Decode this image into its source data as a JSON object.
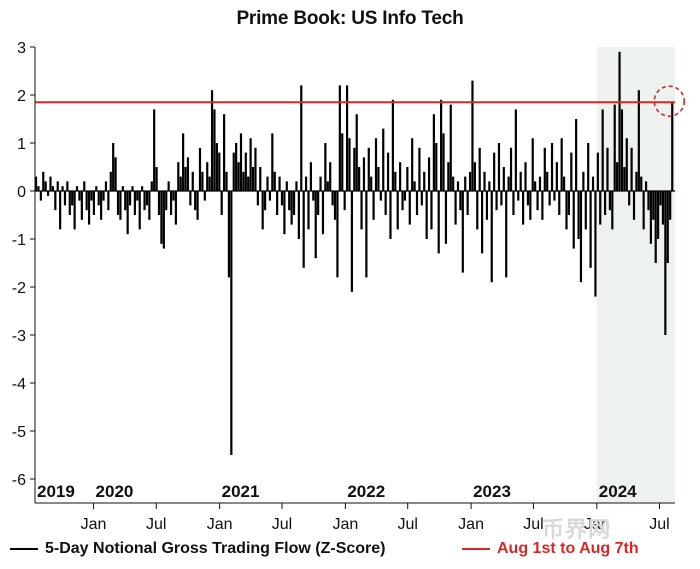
{
  "chart_data": {
    "type": "bar",
    "title": "Prime Book: US Info Tech",
    "xlabel": "",
    "ylabel": "",
    "ylim": [
      -6.5,
      3
    ],
    "yticks": [
      3,
      2,
      1,
      0,
      -1,
      -2,
      -3,
      -4,
      -5,
      -6
    ],
    "x_range": [
      "2019-07-15",
      "2024-08-15"
    ],
    "month_ticks": [
      {
        "label": "Jan",
        "date": "2020-01-01"
      },
      {
        "label": "Jul",
        "date": "2020-07-01"
      },
      {
        "label": "Jan",
        "date": "2021-01-01"
      },
      {
        "label": "Jul",
        "date": "2021-07-01"
      },
      {
        "label": "Jan",
        "date": "2022-01-01"
      },
      {
        "label": "Jul",
        "date": "2022-07-01"
      },
      {
        "label": "Jan",
        "date": "2023-01-01"
      },
      {
        "label": "Jul",
        "date": "2023-07-01"
      },
      {
        "label": "Jan",
        "date": "2024-01-01"
      },
      {
        "label": "Jul",
        "date": "2024-07-01"
      }
    ],
    "year_labels": [
      {
        "label": "2019",
        "date": "2019-07-15"
      },
      {
        "label": "2020",
        "date": "2020-01-01"
      },
      {
        "label": "2021",
        "date": "2021-01-01"
      },
      {
        "label": "2022",
        "date": "2022-01-01"
      },
      {
        "label": "2023",
        "date": "2023-01-01"
      },
      {
        "label": "2024",
        "date": "2024-01-01"
      }
    ],
    "highlight_range": [
      "2024-01-01",
      "2024-08-15"
    ],
    "reference_line": {
      "name": "Aug 1st to Aug 7th",
      "value": 1.85,
      "color": "#d62828"
    },
    "marker_circle": {
      "date": "2024-08-07",
      "value": 1.85
    },
    "series": [
      {
        "name": "5-Day Notional Gross Trading Flow (Z-Score)",
        "color": "#000000",
        "points": [
          [
            "2019-07-18",
            0.3
          ],
          [
            "2019-07-25",
            0.1
          ],
          [
            "2019-08-01",
            -0.2
          ],
          [
            "2019-08-08",
            0.4
          ],
          [
            "2019-08-15",
            0.2
          ],
          [
            "2019-08-22",
            -0.1
          ],
          [
            "2019-08-29",
            0.3
          ],
          [
            "2019-09-05",
            0.1
          ],
          [
            "2019-09-12",
            -0.4
          ],
          [
            "2019-09-19",
            0.2
          ],
          [
            "2019-09-26",
            -0.8
          ],
          [
            "2019-10-03",
            0.1
          ],
          [
            "2019-10-10",
            -0.3
          ],
          [
            "2019-10-17",
            0.2
          ],
          [
            "2019-10-24",
            -0.5
          ],
          [
            "2019-10-31",
            -0.3
          ],
          [
            "2019-11-07",
            -0.8
          ],
          [
            "2019-11-14",
            0.1
          ],
          [
            "2019-11-21",
            -0.2
          ],
          [
            "2019-11-28",
            -0.6
          ],
          [
            "2019-12-05",
            0.2
          ],
          [
            "2019-12-12",
            -0.4
          ],
          [
            "2019-12-19",
            -0.7
          ],
          [
            "2019-12-26",
            -0.2
          ],
          [
            "2020-01-02",
            -0.5
          ],
          [
            "2020-01-09",
            0.1
          ],
          [
            "2020-01-16",
            -0.3
          ],
          [
            "2020-01-23",
            -0.6
          ],
          [
            "2020-01-30",
            -0.2
          ],
          [
            "2020-02-06",
            0.2
          ],
          [
            "2020-02-13",
            -0.4
          ],
          [
            "2020-02-20",
            0.4
          ],
          [
            "2020-02-27",
            1.0
          ],
          [
            "2020-03-05",
            0.7
          ],
          [
            "2020-03-12",
            -0.5
          ],
          [
            "2020-03-19",
            -0.6
          ],
          [
            "2020-03-26",
            0.1
          ],
          [
            "2020-04-02",
            -0.4
          ],
          [
            "2020-04-09",
            -0.9
          ],
          [
            "2020-04-16",
            -0.3
          ],
          [
            "2020-04-23",
            0.1
          ],
          [
            "2020-04-30",
            -0.5
          ],
          [
            "2020-05-07",
            -0.2
          ],
          [
            "2020-05-14",
            -0.8
          ],
          [
            "2020-05-21",
            0.1
          ],
          [
            "2020-05-28",
            -0.4
          ],
          [
            "2020-06-04",
            -0.3
          ],
          [
            "2020-06-11",
            -0.6
          ],
          [
            "2020-06-18",
            0.2
          ],
          [
            "2020-06-25",
            1.7
          ],
          [
            "2020-07-02",
            0.5
          ],
          [
            "2020-07-09",
            -0.5
          ],
          [
            "2020-07-16",
            -1.1
          ],
          [
            "2020-07-23",
            -1.2
          ],
          [
            "2020-07-30",
            -0.4
          ],
          [
            "2020-08-06",
            0.2
          ],
          [
            "2020-08-13",
            -0.5
          ],
          [
            "2020-08-20",
            -0.2
          ],
          [
            "2020-08-27",
            -0.7
          ],
          [
            "2020-09-03",
            0.6
          ],
          [
            "2020-09-10",
            0.3
          ],
          [
            "2020-09-17",
            1.2
          ],
          [
            "2020-09-24",
            0.5
          ],
          [
            "2020-10-01",
            0.7
          ],
          [
            "2020-10-08",
            -0.3
          ],
          [
            "2020-10-15",
            0.4
          ],
          [
            "2020-10-22",
            -0.4
          ],
          [
            "2020-10-29",
            -0.6
          ],
          [
            "2020-11-05",
            0.9
          ],
          [
            "2020-11-12",
            0.4
          ],
          [
            "2020-11-19",
            -0.2
          ],
          [
            "2020-11-26",
            0.6
          ],
          [
            "2020-12-03",
            0.3
          ],
          [
            "2020-12-10",
            2.1
          ],
          [
            "2020-12-17",
            1.7
          ],
          [
            "2020-12-24",
            1.0
          ],
          [
            "2020-12-31",
            0.8
          ],
          [
            "2021-01-07",
            -0.5
          ],
          [
            "2021-01-14",
            1.6
          ],
          [
            "2021-01-21",
            0.4
          ],
          [
            "2021-01-28",
            -1.8
          ],
          [
            "2021-02-04",
            -5.5
          ],
          [
            "2021-02-11",
            0.8
          ],
          [
            "2021-02-18",
            1.0
          ],
          [
            "2021-02-25",
            0.6
          ],
          [
            "2021-03-04",
            1.2
          ],
          [
            "2021-03-11",
            0.4
          ],
          [
            "2021-03-18",
            0.8
          ],
          [
            "2021-03-25",
            0.3
          ],
          [
            "2021-04-01",
            1.1
          ],
          [
            "2021-04-08",
            0.5
          ],
          [
            "2021-04-15",
            0.9
          ],
          [
            "2021-04-22",
            -0.3
          ],
          [
            "2021-04-29",
            0.5
          ],
          [
            "2021-05-06",
            -0.8
          ],
          [
            "2021-05-13",
            -0.4
          ],
          [
            "2021-05-20",
            0.3
          ],
          [
            "2021-05-27",
            -0.2
          ],
          [
            "2021-06-03",
            1.2
          ],
          [
            "2021-06-10",
            0.4
          ],
          [
            "2021-06-17",
            -0.5
          ],
          [
            "2021-06-24",
            0.3
          ],
          [
            "2021-07-01",
            -0.3
          ],
          [
            "2021-07-08",
            -0.9
          ],
          [
            "2021-07-15",
            0.2
          ],
          [
            "2021-07-22",
            -0.4
          ],
          [
            "2021-07-29",
            -0.7
          ],
          [
            "2021-08-05",
            -0.5
          ],
          [
            "2021-08-12",
            0.2
          ],
          [
            "2021-08-19",
            -1.0
          ],
          [
            "2021-08-26",
            2.2
          ],
          [
            "2021-09-02",
            -1.6
          ],
          [
            "2021-09-09",
            0.3
          ],
          [
            "2021-09-16",
            -0.8
          ],
          [
            "2021-09-23",
            0.6
          ],
          [
            "2021-09-30",
            -0.2
          ],
          [
            "2021-10-07",
            -1.4
          ],
          [
            "2021-10-14",
            -0.5
          ],
          [
            "2021-10-21",
            0.3
          ],
          [
            "2021-10-28",
            -0.9
          ],
          [
            "2021-11-04",
            1.0
          ],
          [
            "2021-11-11",
            0.2
          ],
          [
            "2021-11-18",
            0.6
          ],
          [
            "2021-11-25",
            -0.3
          ],
          [
            "2021-12-02",
            -0.6
          ],
          [
            "2021-12-09",
            -1.8
          ],
          [
            "2021-12-16",
            2.2
          ],
          [
            "2021-12-23",
            1.2
          ],
          [
            "2021-12-30",
            -0.4
          ],
          [
            "2022-01-06",
            2.2
          ],
          [
            "2022-01-13",
            1.1
          ],
          [
            "2022-01-20",
            -2.1
          ],
          [
            "2022-01-27",
            0.9
          ],
          [
            "2022-02-03",
            1.6
          ],
          [
            "2022-02-10",
            0.5
          ],
          [
            "2022-02-17",
            -0.8
          ],
          [
            "2022-02-24",
            0.7
          ],
          [
            "2022-03-03",
            -1.8
          ],
          [
            "2022-03-10",
            0.9
          ],
          [
            "2022-03-17",
            0.3
          ],
          [
            "2022-03-24",
            -0.6
          ],
          [
            "2022-03-31",
            1.1
          ],
          [
            "2022-04-07",
            0.5
          ],
          [
            "2022-04-14",
            -0.2
          ],
          [
            "2022-04-21",
            1.3
          ],
          [
            "2022-04-28",
            -0.5
          ],
          [
            "2022-05-05",
            0.8
          ],
          [
            "2022-05-12",
            -1.0
          ],
          [
            "2022-05-19",
            1.9
          ],
          [
            "2022-05-26",
            0.4
          ],
          [
            "2022-06-02",
            -0.8
          ],
          [
            "2022-06-09",
            0.6
          ],
          [
            "2022-06-16",
            -0.4
          ],
          [
            "2022-06-23",
            -0.2
          ],
          [
            "2022-06-30",
            0.5
          ],
          [
            "2022-07-07",
            -0.7
          ],
          [
            "2022-07-14",
            1.1
          ],
          [
            "2022-07-21",
            0.2
          ],
          [
            "2022-07-28",
            -0.5
          ],
          [
            "2022-08-04",
            0.9
          ],
          [
            "2022-08-11",
            -0.3
          ],
          [
            "2022-08-18",
            0.4
          ],
          [
            "2022-08-25",
            -1.0
          ],
          [
            "2022-09-01",
            0.7
          ],
          [
            "2022-09-08",
            -0.8
          ],
          [
            "2022-09-15",
            1.6
          ],
          [
            "2022-09-22",
            1.0
          ],
          [
            "2022-09-29",
            -1.3
          ],
          [
            "2022-10-06",
            1.9
          ],
          [
            "2022-10-13",
            1.2
          ],
          [
            "2022-10-20",
            -1.1
          ],
          [
            "2022-10-27",
            0.6
          ],
          [
            "2022-11-03",
            1.8
          ],
          [
            "2022-11-10",
            0.3
          ],
          [
            "2022-11-17",
            -0.7
          ],
          [
            "2022-11-24",
            0.2
          ],
          [
            "2022-12-01",
            -0.4
          ],
          [
            "2022-12-08",
            -1.7
          ],
          [
            "2022-12-15",
            0.3
          ],
          [
            "2022-12-22",
            -0.5
          ],
          [
            "2022-12-29",
            0.4
          ],
          [
            "2023-01-05",
            2.3
          ],
          [
            "2023-01-12",
            0.6
          ],
          [
            "2023-01-19",
            -0.8
          ],
          [
            "2023-01-26",
            0.9
          ],
          [
            "2023-02-02",
            -1.3
          ],
          [
            "2023-02-09",
            0.4
          ],
          [
            "2023-02-16",
            -0.6
          ],
          [
            "2023-02-23",
            0.2
          ],
          [
            "2023-03-02",
            -1.9
          ],
          [
            "2023-03-09",
            0.8
          ],
          [
            "2023-03-16",
            -0.4
          ],
          [
            "2023-03-23",
            1.0
          ],
          [
            "2023-03-30",
            -0.3
          ],
          [
            "2023-04-06",
            0.5
          ],
          [
            "2023-04-13",
            -1.8
          ],
          [
            "2023-04-20",
            0.3
          ],
          [
            "2023-04-27",
            0.9
          ],
          [
            "2023-05-04",
            -0.5
          ],
          [
            "2023-05-11",
            1.7
          ],
          [
            "2023-05-18",
            -0.2
          ],
          [
            "2023-05-25",
            0.4
          ],
          [
            "2023-06-01",
            -0.7
          ],
          [
            "2023-06-08",
            0.6
          ],
          [
            "2023-06-15",
            -0.3
          ],
          [
            "2023-06-22",
            -0.6
          ],
          [
            "2023-06-29",
            1.1
          ],
          [
            "2023-07-06",
            0.2
          ],
          [
            "2023-07-13",
            -0.4
          ],
          [
            "2023-07-20",
            0.3
          ],
          [
            "2023-07-27",
            -0.6
          ],
          [
            "2023-08-03",
            0.9
          ],
          [
            "2023-08-10",
            0.4
          ],
          [
            "2023-08-17",
            -0.3
          ],
          [
            "2023-08-24",
            1.0
          ],
          [
            "2023-08-31",
            -0.2
          ],
          [
            "2023-09-07",
            0.6
          ],
          [
            "2023-09-14",
            -0.5
          ],
          [
            "2023-09-21",
            1.1
          ],
          [
            "2023-09-28",
            0.3
          ],
          [
            "2023-10-05",
            -0.8
          ],
          [
            "2023-10-12",
            -0.5
          ],
          [
            "2023-10-19",
            0.8
          ],
          [
            "2023-10-26",
            -1.2
          ],
          [
            "2023-11-02",
            1.5
          ],
          [
            "2023-11-09",
            -1.0
          ],
          [
            "2023-11-16",
            -1.9
          ],
          [
            "2023-11-23",
            0.4
          ],
          [
            "2023-11-30",
            -0.8
          ],
          [
            "2023-12-07",
            1.0
          ],
          [
            "2023-12-14",
            -1.6
          ],
          [
            "2023-12-21",
            0.3
          ],
          [
            "2023-12-28",
            -2.2
          ],
          [
            "2024-01-04",
            0.8
          ],
          [
            "2024-01-11",
            -0.7
          ],
          [
            "2024-01-18",
            1.7
          ],
          [
            "2024-01-25",
            -0.5
          ],
          [
            "2024-02-01",
            0.9
          ],
          [
            "2024-02-08",
            -0.4
          ],
          [
            "2024-02-15",
            -0.8
          ],
          [
            "2024-02-22",
            1.8
          ],
          [
            "2024-02-29",
            0.6
          ],
          [
            "2024-03-07",
            2.9
          ],
          [
            "2024-03-14",
            1.7
          ],
          [
            "2024-03-21",
            0.5
          ],
          [
            "2024-03-28",
            1.1
          ],
          [
            "2024-04-04",
            -0.3
          ],
          [
            "2024-04-11",
            0.9
          ],
          [
            "2024-04-18",
            -0.6
          ],
          [
            "2024-04-25",
            0.4
          ],
          [
            "2024-05-02",
            2.1
          ],
          [
            "2024-05-09",
            0.3
          ],
          [
            "2024-05-16",
            -0.8
          ],
          [
            "2024-05-23",
            0.2
          ],
          [
            "2024-05-30",
            -0.4
          ],
          [
            "2024-06-06",
            -1.1
          ],
          [
            "2024-06-13",
            -0.6
          ],
          [
            "2024-06-20",
            -1.5
          ],
          [
            "2024-06-27",
            -1.0
          ],
          [
            "2024-07-04",
            -0.3
          ],
          [
            "2024-07-11",
            -0.7
          ],
          [
            "2024-07-18",
            -3.0
          ],
          [
            "2024-07-25",
            -1.5
          ],
          [
            "2024-08-01",
            -0.6
          ],
          [
            "2024-08-07",
            1.85
          ]
        ]
      }
    ]
  },
  "watermark": "币界网"
}
